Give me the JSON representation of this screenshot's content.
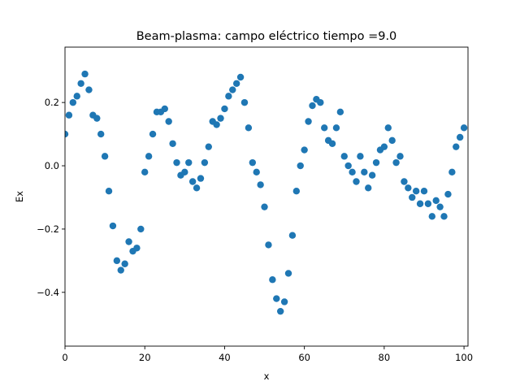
{
  "chart_data": {
    "type": "scatter",
    "title": "Beam-plasma: campo eléctrico  tiempo =9.0",
    "xlabel": "x",
    "ylabel": "Ex",
    "xlim": [
      0,
      101
    ],
    "ylim": [
      -0.57,
      0.375
    ],
    "xticks": [
      0,
      20,
      40,
      60,
      80,
      100
    ],
    "xtick_labels": [
      "0",
      "20",
      "40",
      "60",
      "80",
      "100"
    ],
    "yticks": [
      0.2,
      0.0,
      -0.2,
      -0.4
    ],
    "ytick_labels": [
      "0.2",
      "0.0",
      "−0.2",
      "−0.4"
    ],
    "grid": false,
    "marker_color": "#1f77b4",
    "series": [
      {
        "points": [
          [
            0,
            0.1
          ],
          [
            1,
            0.16
          ],
          [
            2,
            0.2
          ],
          [
            3,
            0.22
          ],
          [
            4,
            0.26
          ],
          [
            5,
            0.29
          ],
          [
            6,
            0.24
          ],
          [
            7,
            0.16
          ],
          [
            8,
            0.15
          ],
          [
            9,
            0.1
          ],
          [
            10,
            0.03
          ],
          [
            11,
            -0.08
          ],
          [
            12,
            -0.19
          ],
          [
            13,
            -0.3
          ],
          [
            14,
            -0.33
          ],
          [
            15,
            -0.31
          ],
          [
            16,
            -0.24
          ],
          [
            17,
            -0.27
          ],
          [
            18,
            -0.26
          ],
          [
            19,
            -0.2
          ],
          [
            20,
            -0.02
          ],
          [
            21,
            0.03
          ],
          [
            22,
            0.1
          ],
          [
            23,
            0.17
          ],
          [
            24,
            0.17
          ],
          [
            25,
            0.18
          ],
          [
            26,
            0.14
          ],
          [
            27,
            0.07
          ],
          [
            28,
            0.01
          ],
          [
            29,
            -0.03
          ],
          [
            30,
            -0.02
          ],
          [
            31,
            0.01
          ],
          [
            32,
            -0.05
          ],
          [
            33,
            -0.07
          ],
          [
            34,
            -0.04
          ],
          [
            35,
            0.01
          ],
          [
            36,
            0.06
          ],
          [
            37,
            0.14
          ],
          [
            38,
            0.13
          ],
          [
            39,
            0.15
          ],
          [
            40,
            0.18
          ],
          [
            41,
            0.22
          ],
          [
            42,
            0.24
          ],
          [
            43,
            0.26
          ],
          [
            44,
            0.28
          ],
          [
            45,
            0.2
          ],
          [
            46,
            0.12
          ],
          [
            47,
            0.01
          ],
          [
            48,
            -0.02
          ],
          [
            49,
            -0.06
          ],
          [
            50,
            -0.13
          ],
          [
            51,
            -0.25
          ],
          [
            52,
            -0.36
          ],
          [
            53,
            -0.42
          ],
          [
            54,
            -0.46
          ],
          [
            55,
            -0.43
          ],
          [
            56,
            -0.34
          ],
          [
            57,
            -0.22
          ],
          [
            58,
            -0.08
          ],
          [
            59,
            0.0
          ],
          [
            60,
            0.05
          ],
          [
            61,
            0.14
          ],
          [
            62,
            0.19
          ],
          [
            63,
            0.21
          ],
          [
            64,
            0.2
          ],
          [
            65,
            0.12
          ],
          [
            66,
            0.08
          ],
          [
            67,
            0.07
          ],
          [
            68,
            0.12
          ],
          [
            69,
            0.17
          ],
          [
            70,
            0.03
          ],
          [
            71,
            0.0
          ],
          [
            72,
            -0.02
          ],
          [
            73,
            -0.05
          ],
          [
            74,
            0.03
          ],
          [
            75,
            -0.02
          ],
          [
            76,
            -0.07
          ],
          [
            77,
            -0.03
          ],
          [
            78,
            0.01
          ],
          [
            79,
            0.05
          ],
          [
            80,
            0.06
          ],
          [
            81,
            0.12
          ],
          [
            82,
            0.08
          ],
          [
            83,
            0.01
          ],
          [
            84,
            0.03
          ],
          [
            85,
            -0.05
          ],
          [
            86,
            -0.07
          ],
          [
            87,
            -0.1
          ],
          [
            88,
            -0.08
          ],
          [
            89,
            -0.12
          ],
          [
            90,
            -0.08
          ],
          [
            91,
            -0.12
          ],
          [
            92,
            -0.16
          ],
          [
            93,
            -0.11
          ],
          [
            94,
            -0.13
          ],
          [
            95,
            -0.16
          ],
          [
            96,
            -0.09
          ],
          [
            97,
            -0.02
          ],
          [
            98,
            0.06
          ],
          [
            99,
            0.09
          ],
          [
            100,
            0.12
          ]
        ]
      }
    ]
  }
}
